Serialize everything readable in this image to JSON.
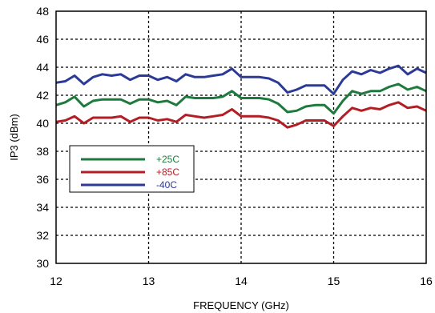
{
  "chart_data": {
    "type": "line",
    "title": "",
    "xlabel": "FREQUENCY (GHz)",
    "ylabel": "IP3 (dBm)",
    "xlim": [
      12,
      16
    ],
    "ylim": [
      30,
      48
    ],
    "xticks": [
      12,
      13,
      14,
      15,
      16
    ],
    "yticks": [
      30,
      32,
      34,
      36,
      38,
      40,
      42,
      44,
      46,
      48
    ],
    "grid": true,
    "legend_position": "center-left",
    "series": [
      {
        "name": "+25C",
        "color": "#1e7a3c",
        "x": [
          12.0,
          12.1,
          12.2,
          12.3,
          12.4,
          12.5,
          12.6,
          12.7,
          12.8,
          12.9,
          13.0,
          13.1,
          13.2,
          13.3,
          13.4,
          13.5,
          13.6,
          13.7,
          13.8,
          13.9,
          14.0,
          14.1,
          14.2,
          14.3,
          14.4,
          14.5,
          14.6,
          14.7,
          14.8,
          14.9,
          15.0,
          15.1,
          15.2,
          15.3,
          15.4,
          15.5,
          15.6,
          15.7,
          15.8,
          15.9,
          16.0
        ],
        "y": [
          41.3,
          41.5,
          41.9,
          41.2,
          41.6,
          41.7,
          41.7,
          41.7,
          41.4,
          41.7,
          41.7,
          41.5,
          41.6,
          41.3,
          41.9,
          41.8,
          41.8,
          41.8,
          41.9,
          42.3,
          41.8,
          41.8,
          41.8,
          41.7,
          41.4,
          40.8,
          40.9,
          41.2,
          41.3,
          41.3,
          40.7,
          41.6,
          42.3,
          42.1,
          42.3,
          42.3,
          42.6,
          42.8,
          42.4,
          42.6,
          42.3
        ]
      },
      {
        "name": "+85C",
        "color": "#b21e24",
        "x": [
          12.0,
          12.1,
          12.2,
          12.3,
          12.4,
          12.5,
          12.6,
          12.7,
          12.8,
          12.9,
          13.0,
          13.1,
          13.2,
          13.3,
          13.4,
          13.5,
          13.6,
          13.7,
          13.8,
          13.9,
          14.0,
          14.1,
          14.2,
          14.3,
          14.4,
          14.5,
          14.6,
          14.7,
          14.8,
          14.9,
          15.0,
          15.1,
          15.2,
          15.3,
          15.4,
          15.5,
          15.6,
          15.7,
          15.8,
          15.9,
          16.0
        ],
        "y": [
          40.1,
          40.2,
          40.5,
          40.0,
          40.4,
          40.4,
          40.4,
          40.5,
          40.1,
          40.4,
          40.4,
          40.2,
          40.3,
          40.1,
          40.6,
          40.5,
          40.4,
          40.5,
          40.6,
          41.0,
          40.5,
          40.5,
          40.5,
          40.4,
          40.2,
          39.7,
          39.9,
          40.2,
          40.2,
          40.2,
          39.8,
          40.5,
          41.1,
          40.9,
          41.1,
          41.0,
          41.3,
          41.5,
          41.1,
          41.2,
          40.9
        ]
      },
      {
        "name": "-40C",
        "color": "#2b3a97",
        "x": [
          12.0,
          12.1,
          12.2,
          12.3,
          12.4,
          12.5,
          12.6,
          12.7,
          12.8,
          12.9,
          13.0,
          13.1,
          13.2,
          13.3,
          13.4,
          13.5,
          13.6,
          13.7,
          13.8,
          13.9,
          14.0,
          14.1,
          14.2,
          14.3,
          14.4,
          14.5,
          14.6,
          14.7,
          14.8,
          14.9,
          15.0,
          15.1,
          15.2,
          15.3,
          15.4,
          15.5,
          15.6,
          15.7,
          15.8,
          15.9,
          16.0
        ],
        "y": [
          42.9,
          43.0,
          43.4,
          42.8,
          43.3,
          43.5,
          43.4,
          43.5,
          43.1,
          43.4,
          43.4,
          43.1,
          43.3,
          43.0,
          43.5,
          43.3,
          43.3,
          43.4,
          43.5,
          43.9,
          43.3,
          43.3,
          43.3,
          43.2,
          42.9,
          42.2,
          42.4,
          42.7,
          42.7,
          42.7,
          42.1,
          43.1,
          43.7,
          43.5,
          43.8,
          43.6,
          43.9,
          44.1,
          43.5,
          43.9,
          43.6
        ]
      }
    ]
  }
}
